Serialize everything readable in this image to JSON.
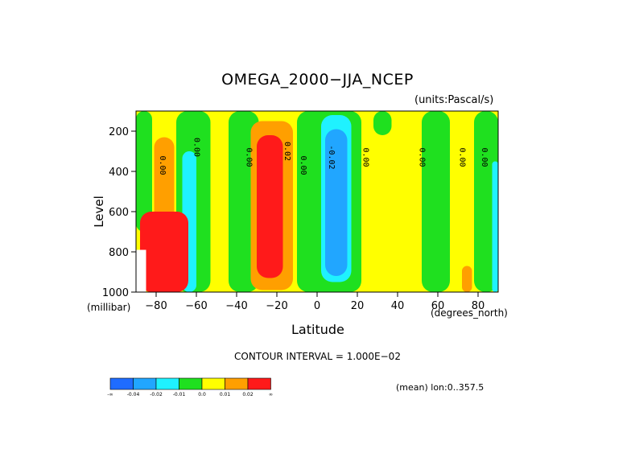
{
  "chart_data": {
    "type": "heatmap",
    "title": "OMEGA_2000−JJA_NCEP",
    "units": "(units:Pascal/s)",
    "xlabel": "Latitude",
    "x_unit": "(degrees_north)",
    "ylabel": "Level",
    "y_unit": "(millibar)",
    "xlim": [
      -90,
      90
    ],
    "ylim": [
      1000,
      100
    ],
    "x_ticks": [
      -80,
      -60,
      -40,
      -20,
      0,
      20,
      40,
      60,
      80
    ],
    "y_ticks": [
      200,
      400,
      600,
      800,
      1000
    ],
    "contour_interval": "CONTOUR INTERVAL = 1.000E−02",
    "mean_note": "(mean) lon:0..357.5",
    "colorbar": {
      "labels": [
        "-∞",
        "-0.04",
        "-0.02",
        "-0.01",
        "0.0",
        "0.01",
        "0.02",
        "∞"
      ],
      "colors": [
        "#1f6cff",
        "#21a6ff",
        "#1ff2ff",
        "#1fe01f",
        "#ffff00",
        "#ff9f00",
        "#ff1a1a"
      ]
    },
    "contour_labels": [
      {
        "text": "0.00",
        "lat": -78,
        "level": 370
      },
      {
        "text": "0.00",
        "lat": -61,
        "level": 280
      },
      {
        "text": "0.00",
        "lat": -35,
        "level": 330
      },
      {
        "text": "0.02",
        "lat": -16,
        "level": 300
      },
      {
        "text": "0.00",
        "lat": -8,
        "level": 370
      },
      {
        "text": "-0.02",
        "lat": 6,
        "level": 330
      },
      {
        "text": "0.00",
        "lat": 23,
        "level": 330
      },
      {
        "text": "0.00",
        "lat": 51,
        "level": 330
      },
      {
        "text": "0.00",
        "lat": 71,
        "level": 330
      },
      {
        "text": "0.00",
        "lat": 82,
        "level": 330
      }
    ],
    "regions": [
      {
        "name": "background-positive",
        "value_band": "0.0 to 0.01",
        "lat_range": [
          -90,
          90
        ],
        "level_range": [
          100,
          1000
        ]
      },
      {
        "name": "band-green-a",
        "value_band": "-0.01 to 0.0",
        "lat_range": [
          -90,
          -82
        ],
        "level_range": [
          100,
          700
        ]
      },
      {
        "name": "band-green-b",
        "value_band": "-0.01 to 0.0",
        "lat_range": [
          -70,
          -53
        ],
        "level_range": [
          100,
          1000
        ]
      },
      {
        "name": "band-green-c",
        "value_band": "-0.01 to 0.0",
        "lat_range": [
          -44,
          -29
        ],
        "level_range": [
          100,
          1000
        ]
      },
      {
        "name": "band-green-d",
        "value_band": "-0.01 to 0.0",
        "lat_range": [
          -10,
          22
        ],
        "level_range": [
          100,
          1000
        ]
      },
      {
        "name": "band-green-e",
        "value_band": "-0.01 to 0.0",
        "lat_range": [
          28,
          37
        ],
        "level_range": [
          100,
          220
        ]
      },
      {
        "name": "band-green-f",
        "value_band": "-0.01 to 0.0",
        "lat_range": [
          52,
          66
        ],
        "level_range": [
          100,
          1000
        ]
      },
      {
        "name": "band-green-g",
        "value_band": "-0.01 to 0.0",
        "lat_range": [
          78,
          90
        ],
        "level_range": [
          100,
          1000
        ]
      },
      {
        "name": "cyan-south",
        "value_band": "-0.02 to -0.01",
        "lat_range": [
          -67,
          -60
        ],
        "level_range": [
          300,
          1000
        ]
      },
      {
        "name": "cyan-tropics",
        "value_band": "-0.02 to -0.01",
        "lat_range": [
          2,
          17
        ],
        "level_range": [
          120,
          950
        ]
      },
      {
        "name": "blue-tropics",
        "value_band": "-0.04 to -0.02",
        "lat_range": [
          4,
          15
        ],
        "level_range": [
          190,
          920
        ]
      },
      {
        "name": "cyan-north",
        "value_band": "-0.02 to -0.01",
        "lat_range": [
          87,
          90
        ],
        "level_range": [
          350,
          1000
        ]
      },
      {
        "name": "orange-south",
        "value_band": "0.01 to 0.02",
        "lat_range": [
          -81,
          -71
        ],
        "level_range": [
          230,
          1000
        ]
      },
      {
        "name": "red-south",
        "value_band": "0.02 and above",
        "lat_range": [
          -88,
          -64
        ],
        "level_range": [
          600,
          1000
        ]
      },
      {
        "name": "orange-subtropics",
        "value_band": "0.01 to 0.02",
        "lat_range": [
          -33,
          -12
        ],
        "level_range": [
          150,
          990
        ]
      },
      {
        "name": "red-subtropics",
        "value_band": "0.02 and above",
        "lat_range": [
          -30,
          -17
        ],
        "level_range": [
          220,
          930
        ]
      },
      {
        "name": "orange-north",
        "value_band": "0.01 to 0.02",
        "lat_range": [
          72,
          77
        ],
        "level_range": [
          870,
          1000
        ]
      }
    ]
  }
}
